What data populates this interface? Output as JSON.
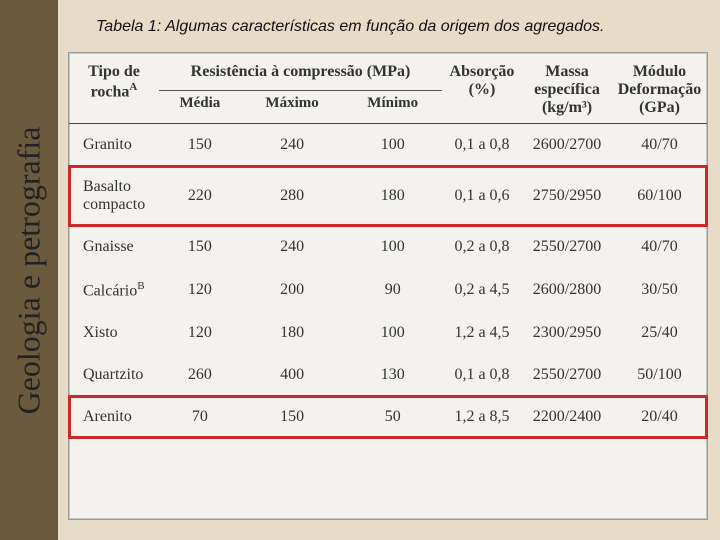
{
  "caption": "Tabela 1: Algumas características em função da origem dos agregados.",
  "side_label": "Geologia e petrografia",
  "background_color": "#e8dcc8",
  "sidebar_color": "#6b5a3e",
  "highlight_color": "#cc2a2a",
  "table": {
    "columns": {
      "tipo": {
        "label": "Tipo de rocha",
        "super": "A"
      },
      "resist": {
        "label": "Resistência à compressão (MPa)",
        "sub": {
          "media": "Média",
          "max": "Máximo",
          "min": "Mínimo"
        }
      },
      "absor": {
        "label": "Absorção (%)"
      },
      "massa": {
        "label": "Massa específica (kg/m³)"
      },
      "modulo": {
        "label": "Módulo Deformação (GPa)"
      }
    },
    "rows": [
      {
        "tipo": "Granito",
        "super": "",
        "media": "150",
        "max": "240",
        "min": "100",
        "absor": "0,1 a 0,8",
        "massa": "2600/2700",
        "modulo": "40/70",
        "hl": false
      },
      {
        "tipo": "Basalto compacto",
        "super": "",
        "media": "220",
        "max": "280",
        "min": "180",
        "absor": "0,1 a 0,6",
        "massa": "2750/2950",
        "modulo": "60/100",
        "hl": true
      },
      {
        "tipo": "Gnaisse",
        "super": "",
        "media": "150",
        "max": "240",
        "min": "100",
        "absor": "0,2 a 0,8",
        "massa": "2550/2700",
        "modulo": "40/70",
        "hl": false
      },
      {
        "tipo": "Calcário",
        "super": "B",
        "media": "120",
        "max": "200",
        "min": "90",
        "absor": "0,2 a 4,5",
        "massa": "2600/2800",
        "modulo": "30/50",
        "hl": false
      },
      {
        "tipo": "Xisto",
        "super": "",
        "media": "120",
        "max": "180",
        "min": "100",
        "absor": "1,2 a 4,5",
        "massa": "2300/2950",
        "modulo": "25/40",
        "hl": false
      },
      {
        "tipo": "Quartzito",
        "super": "",
        "media": "260",
        "max": "400",
        "min": "130",
        "absor": "0,1 a 0,8",
        "massa": "2550/2700",
        "modulo": "50/100",
        "hl": false
      },
      {
        "tipo": "Arenito",
        "super": "",
        "media": "70",
        "max": "150",
        "min": "50",
        "absor": "1,2 a 8,5",
        "massa": "2200/2400",
        "modulo": "20/40",
        "hl": true
      }
    ]
  }
}
